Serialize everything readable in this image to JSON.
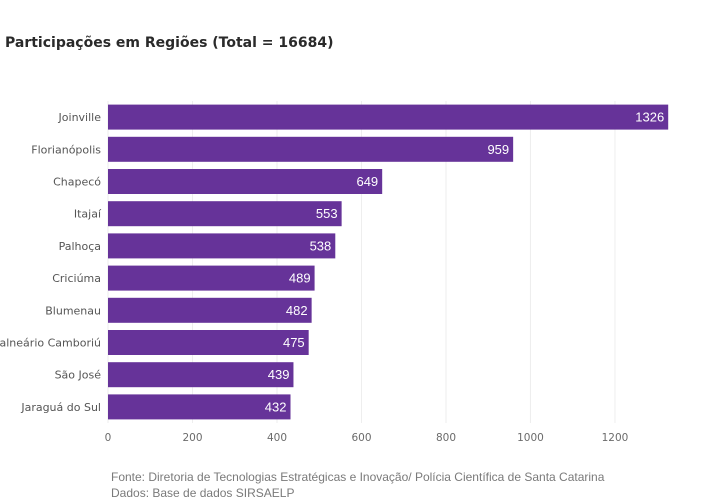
{
  "chart_data": {
    "type": "bar",
    "orientation": "horizontal",
    "title": "Participações em Regiões (Total = 16684)",
    "categories": [
      "Joinville",
      "Florianópolis",
      "Chapecó",
      "Itajaí",
      "Palhoça",
      "Criciúma",
      "Blumenau",
      "Balneário Camboriú",
      "São José",
      "Jaraguá do Sul"
    ],
    "values": [
      1326,
      959,
      649,
      553,
      538,
      489,
      482,
      475,
      439,
      432
    ],
    "data_labels": [
      "1326",
      "959",
      "649",
      "553",
      "538",
      "489",
      "482",
      "475",
      "439",
      "432"
    ],
    "xlim": [
      0,
      1335
    ],
    "xticks": [
      0,
      200,
      400,
      600,
      800,
      1000,
      1200
    ],
    "xtick_labels": [
      "0",
      "200",
      "400",
      "600",
      "800",
      "1000",
      "1200"
    ],
    "grid": true,
    "bar_color": "#663399"
  },
  "footer": {
    "source_line1": "Fonte: Diretoria de Tecnologias Estratégicas e Inovação/ Polícia Científica de Santa Catarina",
    "source_line2": "Dados: Base de dados SIRSAELP"
  }
}
